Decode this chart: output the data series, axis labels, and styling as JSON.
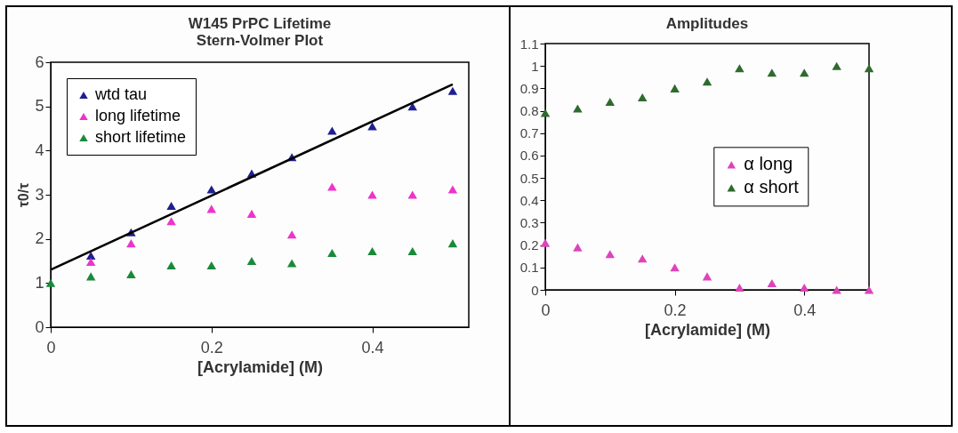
{
  "chart_data": [
    {
      "type": "scatter",
      "title": [
        "W145 PrPC Lifetime",
        "Stern-Volmer Plot"
      ],
      "xlabel": "[Acrylamide] (M)",
      "ylabel": "τ0/τ",
      "x": [
        0,
        0.05,
        0.1,
        0.15,
        0.2,
        0.25,
        0.3,
        0.35,
        0.4,
        0.45,
        0.5
      ],
      "xlim": [
        0,
        0.52
      ],
      "xticks": [
        0,
        0.2,
        0.4
      ],
      "ylim": [
        0,
        6
      ],
      "yticks": [
        0,
        1,
        2,
        3,
        4,
        5,
        6
      ],
      "marker": "triangle",
      "legend": "top left",
      "grid": false,
      "series": [
        {
          "name": "wtd tau",
          "color": "#1f1f8f",
          "values": [
            null,
            1.62,
            2.15,
            2.75,
            3.12,
            3.48,
            3.85,
            4.45,
            4.55,
            5.0,
            5.35
          ]
        },
        {
          "name": "long lifetime",
          "color": "#ee33cc",
          "values": [
            null,
            1.48,
            1.9,
            2.4,
            2.68,
            2.57,
            2.1,
            3.18,
            3.0,
            3.0,
            3.12
          ]
        },
        {
          "name": "short lifetime",
          "color": "#1a8a3a",
          "values": [
            1.0,
            1.15,
            1.2,
            1.4,
            1.4,
            1.5,
            1.45,
            1.68,
            1.72,
            1.72,
            1.9
          ]
        },
        {
          "type": "line",
          "marker": "none",
          "color": "#000000",
          "x": [
            0,
            0.5
          ],
          "values": [
            1.3,
            5.5
          ]
        }
      ]
    },
    {
      "type": "scatter",
      "title": "Amplitudes",
      "xlabel": "[Acrylamide] (M)",
      "x": [
        0,
        0.05,
        0.1,
        0.15,
        0.2,
        0.25,
        0.3,
        0.35,
        0.4,
        0.45,
        0.5
      ],
      "xlim": [
        0,
        0.5
      ],
      "xticks": [
        0,
        0.2,
        0.4
      ],
      "ylim": [
        0,
        1.1
      ],
      "yticks": [
        0,
        0.1,
        0.2,
        0.3,
        0.4,
        0.5,
        0.6,
        0.7,
        0.8,
        0.9,
        1,
        1.1
      ],
      "marker": "triangle",
      "legend": "center",
      "grid": false,
      "series": [
        {
          "name": "α long",
          "color": "#dd44bb",
          "values": [
            0.21,
            0.19,
            0.16,
            0.14,
            0.1,
            0.06,
            0.01,
            0.03,
            0.01,
            0.0,
            0.0
          ]
        },
        {
          "name": "α short",
          "color": "#2e6b2e",
          "values": [
            0.79,
            0.81,
            0.84,
            0.86,
            0.9,
            0.93,
            0.99,
            0.97,
            0.97,
            1.0,
            0.99
          ]
        }
      ]
    }
  ]
}
